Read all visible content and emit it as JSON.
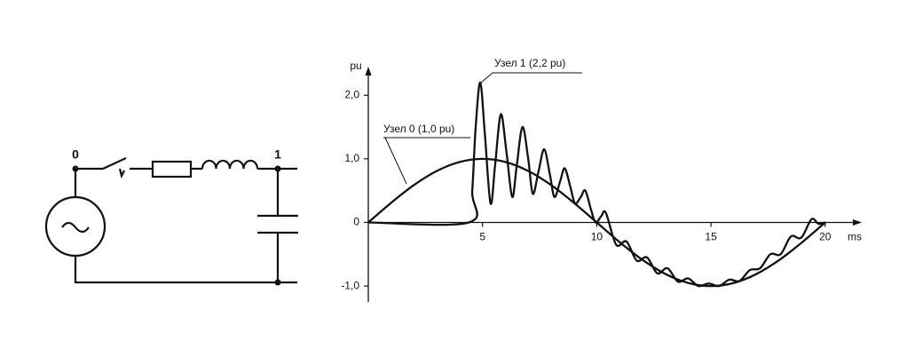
{
  "circuit": {
    "node_labels": [
      "0",
      "1"
    ]
  },
  "chart_data": {
    "type": "line",
    "xlabel": "ms",
    "ylabel": "pu",
    "xlim": [
      0,
      21.6
    ],
    "ylim": [
      -1.25,
      2.45
    ],
    "xticks": [
      5,
      10,
      15,
      20
    ],
    "yticks": [
      {
        "value": 2,
        "label": "2,0"
      },
      {
        "value": 1,
        "label": "1,0"
      },
      0,
      {
        "value": -1,
        "label": "-1,0"
      }
    ],
    "series": [
      {
        "name": "Узел 0 (1,0 pu)",
        "color": "#111111",
        "x": [
          0,
          1,
          2,
          3,
          4,
          5,
          6,
          7,
          8,
          9,
          10,
          11,
          12,
          13,
          14,
          15,
          16,
          17,
          18,
          19,
          20
        ],
        "values": [
          0,
          0.309,
          0.588,
          0.809,
          0.951,
          1,
          0.951,
          0.809,
          0.588,
          0.309,
          0,
          -0.309,
          -0.588,
          -0.809,
          -0.951,
          -1,
          -0.951,
          -0.809,
          -0.588,
          -0.309,
          0
        ]
      },
      {
        "name": "Узел 1 (2,2 pu)",
        "color": "#111111",
        "x": [
          0,
          4.4,
          4.55,
          4.7,
          4.9,
          5.1,
          5.35,
          5.55,
          5.8,
          6.05,
          6.3,
          6.5,
          6.75,
          7.0,
          7.2,
          7.45,
          7.7,
          7.95,
          8.15,
          8.4,
          8.6,
          8.85,
          9.05,
          9.3,
          9.5,
          9.75,
          9.95,
          10.2,
          10.4,
          10.85,
          11.3,
          11.75,
          12.2,
          12.65,
          13.1,
          13.55,
          14.0,
          14.45,
          14.9,
          15.35,
          15.8,
          16.25,
          16.7,
          17.15,
          17.6,
          18.05,
          18.5,
          18.95,
          19.4,
          19.7,
          20
        ],
        "values": [
          0,
          0,
          0.5,
          1.5,
          2.2,
          1.4,
          0.3,
          0.9,
          1.7,
          1.1,
          0.4,
          0.9,
          1.5,
          1.0,
          0.45,
          0.8,
          1.15,
          0.75,
          0.4,
          0.65,
          0.85,
          0.55,
          0.3,
          0.4,
          0.5,
          0.2,
          0.0,
          0.1,
          0.15,
          -0.35,
          -0.3,
          -0.6,
          -0.55,
          -0.8,
          -0.72,
          -0.93,
          -0.88,
          -1.0,
          -0.96,
          -1.0,
          -0.9,
          -0.92,
          -0.75,
          -0.72,
          -0.5,
          -0.5,
          -0.22,
          -0.24,
          0.05,
          -0.02,
          0
        ]
      }
    ]
  }
}
